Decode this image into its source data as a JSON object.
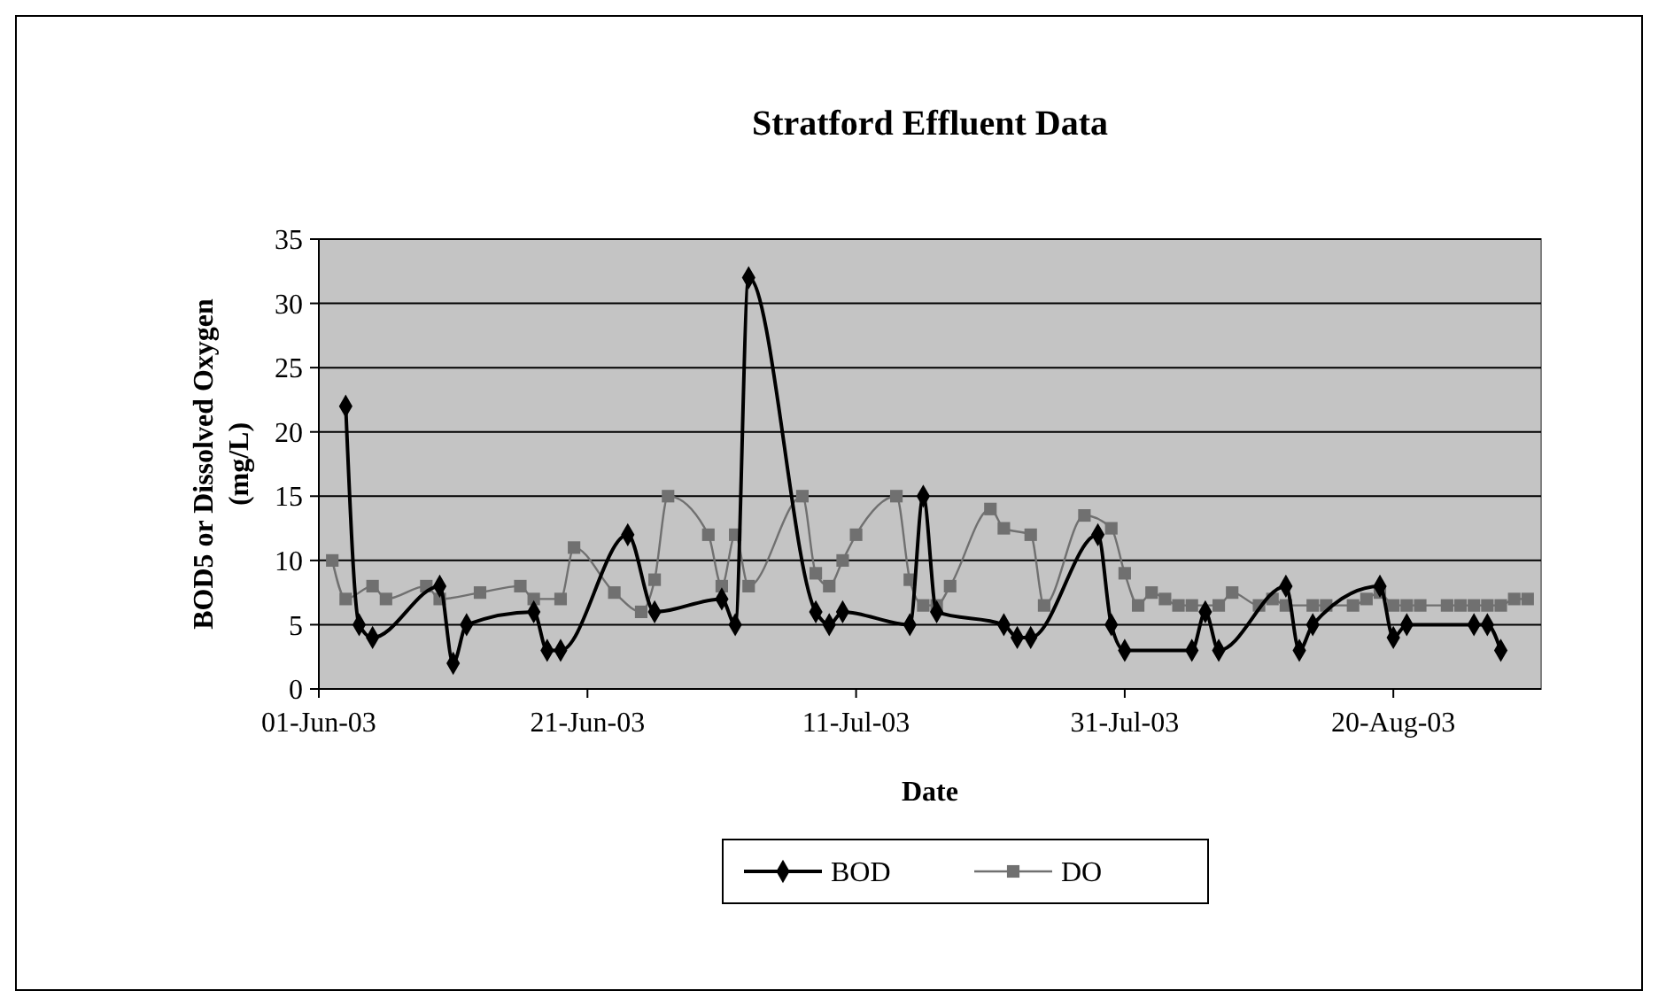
{
  "chart_data": {
    "type": "line",
    "title": "Stratford Effluent Data",
    "xlabel": "Date",
    "ylabel": "BOD5 or Dissolved Oxygen (mg/L)",
    "xlim": [
      "2003-06-01",
      "2003-08-31"
    ],
    "xticks": [
      {
        "value": "2003-06-01",
        "label": "01-Jun-03"
      },
      {
        "value": "2003-06-21",
        "label": "21-Jun-03"
      },
      {
        "value": "2003-07-11",
        "label": "11-Jul-03"
      },
      {
        "value": "2003-07-31",
        "label": "31-Jul-03"
      },
      {
        "value": "2003-08-20",
        "label": "20-Aug-03"
      }
    ],
    "ylim": [
      0,
      35
    ],
    "yticks": [
      0,
      5,
      10,
      15,
      20,
      25,
      30,
      35
    ],
    "grid": "y",
    "legend": "bottom",
    "series": [
      {
        "name": "BOD",
        "color": "#000000",
        "marker": "diamond",
        "x": [
          "2003-06-03",
          "2003-06-04",
          "2003-06-05",
          "2003-06-10",
          "2003-06-11",
          "2003-06-12",
          "2003-06-17",
          "2003-06-18",
          "2003-06-19",
          "2003-06-24",
          "2003-06-26",
          "2003-07-01",
          "2003-07-02",
          "2003-07-03",
          "2003-07-08",
          "2003-07-09",
          "2003-07-10",
          "2003-07-15",
          "2003-07-16",
          "2003-07-17",
          "2003-07-22",
          "2003-07-23",
          "2003-07-24",
          "2003-07-29",
          "2003-07-30",
          "2003-07-31",
          "2003-08-05",
          "2003-08-06",
          "2003-08-07",
          "2003-08-12",
          "2003-08-13",
          "2003-08-14",
          "2003-08-19",
          "2003-08-20",
          "2003-08-21",
          "2003-08-26",
          "2003-08-27",
          "2003-08-28"
        ],
        "values": [
          22,
          5,
          4,
          8,
          2,
          5,
          6,
          3,
          3,
          12,
          6,
          7,
          5,
          32,
          6,
          5,
          6,
          5,
          15,
          6,
          5,
          4,
          4,
          12,
          5,
          3,
          3,
          6,
          3,
          8,
          3,
          5,
          8,
          4,
          5,
          5,
          5,
          3
        ]
      },
      {
        "name": "DO",
        "color": "#707070",
        "marker": "square",
        "x": [
          "2003-06-02",
          "2003-06-03",
          "2003-06-05",
          "2003-06-06",
          "2003-06-09",
          "2003-06-10",
          "2003-06-13",
          "2003-06-16",
          "2003-06-17",
          "2003-06-19",
          "2003-06-20",
          "2003-06-23",
          "2003-06-25",
          "2003-06-26",
          "2003-06-27",
          "2003-06-30",
          "2003-07-01",
          "2003-07-02",
          "2003-07-03",
          "2003-07-07",
          "2003-07-08",
          "2003-07-09",
          "2003-07-10",
          "2003-07-11",
          "2003-07-14",
          "2003-07-15",
          "2003-07-16",
          "2003-07-17",
          "2003-07-18",
          "2003-07-21",
          "2003-07-22",
          "2003-07-24",
          "2003-07-25",
          "2003-07-28",
          "2003-07-30",
          "2003-07-31",
          "2003-08-01",
          "2003-08-02",
          "2003-08-03",
          "2003-08-04",
          "2003-08-05",
          "2003-08-07",
          "2003-08-08",
          "2003-08-10",
          "2003-08-11",
          "2003-08-12",
          "2003-08-14",
          "2003-08-15",
          "2003-08-17",
          "2003-08-18",
          "2003-08-19",
          "2003-08-20",
          "2003-08-21",
          "2003-08-22",
          "2003-08-24",
          "2003-08-25",
          "2003-08-26",
          "2003-08-27",
          "2003-08-28",
          "2003-08-29",
          "2003-08-30"
        ],
        "values": [
          10,
          7,
          8,
          7,
          8,
          7,
          7.5,
          8,
          7,
          7,
          11,
          7.5,
          6,
          8.5,
          15,
          12,
          8,
          12,
          8,
          15,
          9,
          8,
          10,
          12,
          15,
          8.5,
          6.5,
          6.5,
          8,
          14,
          12.5,
          12,
          6.5,
          13.5,
          12.5,
          9,
          6.5,
          7.5,
          7,
          6.5,
          6.5,
          6.5,
          7.5,
          6.5,
          7,
          6.5,
          6.5,
          6.5,
          6.5,
          7,
          7.5,
          6.5,
          6.5,
          6.5,
          6.5,
          6.5,
          6.5,
          6.5,
          6.5,
          7,
          7
        ]
      }
    ]
  }
}
